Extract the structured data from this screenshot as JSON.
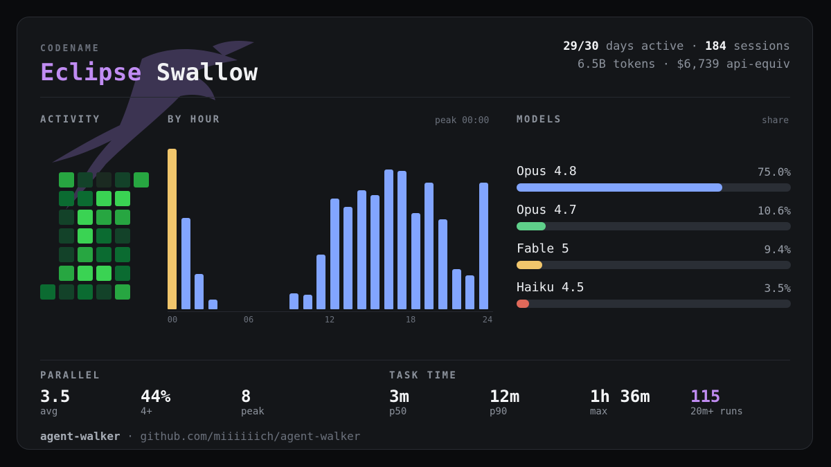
{
  "header": {
    "kicker": "CODENAME",
    "title_accent": "Eclipse",
    "title_rest": "Swallow",
    "days_active": "29/30",
    "days_active_suffix": "days active ·",
    "sessions": "184",
    "sessions_suffix": "sessions",
    "tokens_line": "6.5B tokens · $6,739 api-equiv"
  },
  "activity": {
    "label": "ACTIVITY",
    "palette": [
      "#1b2a21",
      "#134229",
      "#0b6b31",
      "#27a641",
      "#3ad353"
    ],
    "grid": [
      [
        null,
        3,
        1,
        0,
        1,
        3
      ],
      [
        null,
        2,
        2,
        4,
        4,
        null
      ],
      [
        null,
        1,
        4,
        3,
        3,
        null
      ],
      [
        null,
        1,
        4,
        2,
        1,
        null
      ],
      [
        null,
        1,
        3,
        2,
        2,
        null
      ],
      [
        null,
        3,
        4,
        4,
        2,
        null
      ],
      [
        2,
        1,
        2,
        1,
        3,
        null
      ]
    ]
  },
  "by_hour": {
    "label": "BY HOUR",
    "peak": "peak 00:00",
    "tick_labels": [
      "00",
      "06",
      "12",
      "18",
      "24"
    ],
    "values": [
      100,
      57,
      22,
      6,
      0,
      0,
      0,
      0,
      0,
      10,
      9,
      34,
      69,
      64,
      74,
      71,
      87,
      86,
      60,
      79,
      56,
      25,
      21,
      79
    ],
    "peak_index": 0,
    "peak_color": "#f1c66c",
    "bar_color": "#82a5ff"
  },
  "models": {
    "label": "MODELS",
    "share_label": "share",
    "items": [
      {
        "name": "Opus 4.8",
        "pct_label": "75.0%",
        "share": 0.75,
        "color": "#82a5ff"
      },
      {
        "name": "Opus 4.7",
        "pct_label": "10.6%",
        "share": 0.106,
        "color": "#5fd08a"
      },
      {
        "name": "Fable 5",
        "pct_label": "9.4%",
        "share": 0.094,
        "color": "#f1c66c"
      },
      {
        "name": "Haiku 4.5",
        "pct_label": "3.5%",
        "share": 0.035,
        "color": "#e0695a"
      }
    ]
  },
  "parallel": {
    "label": "PARALLEL",
    "stats": [
      {
        "value": "3.5",
        "caption": "avg"
      },
      {
        "value": "44%",
        "caption": "4+"
      },
      {
        "value": "8",
        "caption": "peak"
      }
    ]
  },
  "task_time": {
    "label": "TASK TIME",
    "stats": [
      {
        "value": "3m",
        "caption": "p50"
      },
      {
        "value": "12m",
        "caption": "p90"
      },
      {
        "value": "1h 36m",
        "caption": "max"
      },
      {
        "value": "115",
        "caption": "20m+ runs"
      }
    ]
  },
  "footer": {
    "name": "agent-walker",
    "separator": "·",
    "link": "github.com/miiiiiich/agent-walker"
  }
}
